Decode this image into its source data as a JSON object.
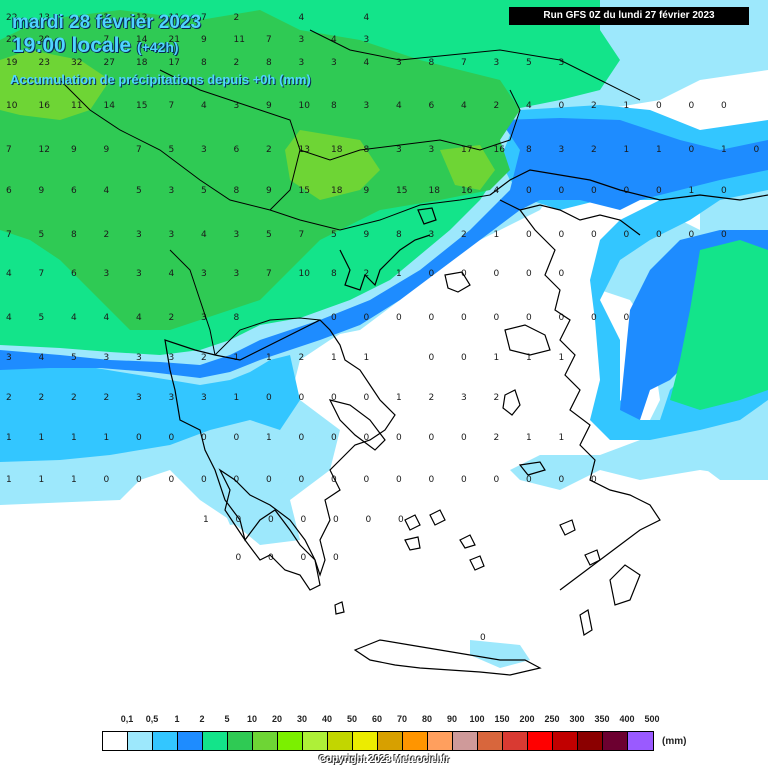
{
  "header": {
    "date": "mardi 28 février 2023",
    "local_time": "19:00 locale",
    "offset": "(+42h)",
    "accumulation": "Accumulation de précipitations depuis +0h (mm)",
    "run": "Run GFS 0Z du lundi 27 février 2023"
  },
  "legend": {
    "labels": [
      "0,1",
      "0,5",
      "1",
      "2",
      "5",
      "10",
      "20",
      "30",
      "40",
      "50",
      "60",
      "70",
      "80",
      "90",
      "100",
      "150",
      "200",
      "250",
      "300",
      "350",
      "400",
      "500"
    ],
    "colors": [
      "#ffffff",
      "#9de8fc",
      "#33c6ff",
      "#1e8cff",
      "#13e48a",
      "#2fca54",
      "#6ed535",
      "#7bf000",
      "#aef038",
      "#c2d600",
      "#ecec00",
      "#d7a000",
      "#ff9500",
      "#ff9f5e",
      "#cf9a9a",
      "#d8663c",
      "#d93a32",
      "#ff0000",
      "#c10000",
      "#8b0000",
      "#6c0030",
      "#9a5aff"
    ],
    "unit": "(mm)"
  },
  "copyright": "Copyright 2023 Meteociel.fr",
  "map_values": [
    {
      "row": 0,
      "cols": [
        22,
        13,
        "",
        2,
        12,
        11,
        7,
        2,
        "",
        4,
        "",
        4,
        "",
        ""
      ]
    },
    {
      "row": 1,
      "cols": [
        22,
        20,
        "",
        7,
        14,
        21,
        9,
        11,
        7,
        3,
        4,
        3,
        "",
        ""
      ]
    },
    {
      "row": 2,
      "cols": [
        19,
        23,
        32,
        27,
        18,
        17,
        8,
        2,
        8,
        3,
        3,
        4,
        3,
        8,
        7,
        3,
        5,
        3
      ]
    },
    {
      "row": 3,
      "cols": [
        10,
        16,
        11,
        14,
        15,
        7,
        4,
        3,
        9,
        10,
        8,
        3,
        4,
        6,
        4,
        2,
        4,
        0,
        2,
        1,
        0,
        0,
        0
      ]
    },
    {
      "row": 4,
      "cols": [
        7,
        12,
        9,
        9,
        7,
        5,
        3,
        6,
        2,
        13,
        18,
        8,
        3,
        3,
        17,
        16,
        8,
        3,
        2,
        1,
        1,
        0,
        1,
        0
      ]
    },
    {
      "row": 5,
      "cols": [
        6,
        9,
        6,
        4,
        5,
        3,
        5,
        8,
        9,
        15,
        18,
        9,
        15,
        18,
        16,
        4,
        0,
        0,
        0,
        0,
        0,
        1,
        0
      ]
    },
    {
      "row": 6,
      "cols": [
        7,
        5,
        8,
        2,
        3,
        3,
        4,
        3,
        5,
        7,
        5,
        9,
        8,
        3,
        2,
        1,
        0,
        0,
        0,
        0,
        0,
        0,
        0
      ]
    },
    {
      "row": 7,
      "cols": [
        4,
        7,
        6,
        3,
        3,
        4,
        3,
        3,
        7,
        10,
        8,
        2,
        1,
        0,
        0,
        0,
        0,
        0
      ]
    },
    {
      "row": 8,
      "cols": [
        4,
        5,
        4,
        4,
        4,
        2,
        3,
        8,
        "",
        "",
        0,
        0,
        0,
        0,
        0,
        0,
        0,
        0,
        0,
        0
      ]
    },
    {
      "row": 9,
      "cols": [
        3,
        4,
        5,
        3,
        3,
        3,
        2,
        1,
        1,
        2,
        1,
        1,
        "",
        0,
        0,
        1,
        1,
        1
      ]
    },
    {
      "row": 10,
      "cols": [
        2,
        2,
        2,
        2,
        3,
        3,
        3,
        1,
        0,
        0,
        0,
        0,
        1,
        2,
        3,
        2
      ]
    },
    {
      "row": 11,
      "cols": [
        1,
        1,
        1,
        1,
        0,
        0,
        0,
        0,
        1,
        0,
        0,
        0,
        0,
        0,
        0,
        2,
        1,
        1
      ]
    },
    {
      "row": 12,
      "cols": [
        1,
        1,
        1,
        0,
        0,
        0,
        0,
        0,
        0,
        0,
        0,
        0,
        0,
        0,
        0,
        0,
        0,
        0,
        0
      ]
    },
    {
      "row": 13,
      "cols": [
        1,
        0,
        0,
        0,
        0,
        0,
        0
      ]
    },
    {
      "row": 14,
      "cols": [
        0,
        0,
        0,
        0
      ]
    },
    {
      "row": 15,
      "cols": [
        0
      ]
    }
  ]
}
